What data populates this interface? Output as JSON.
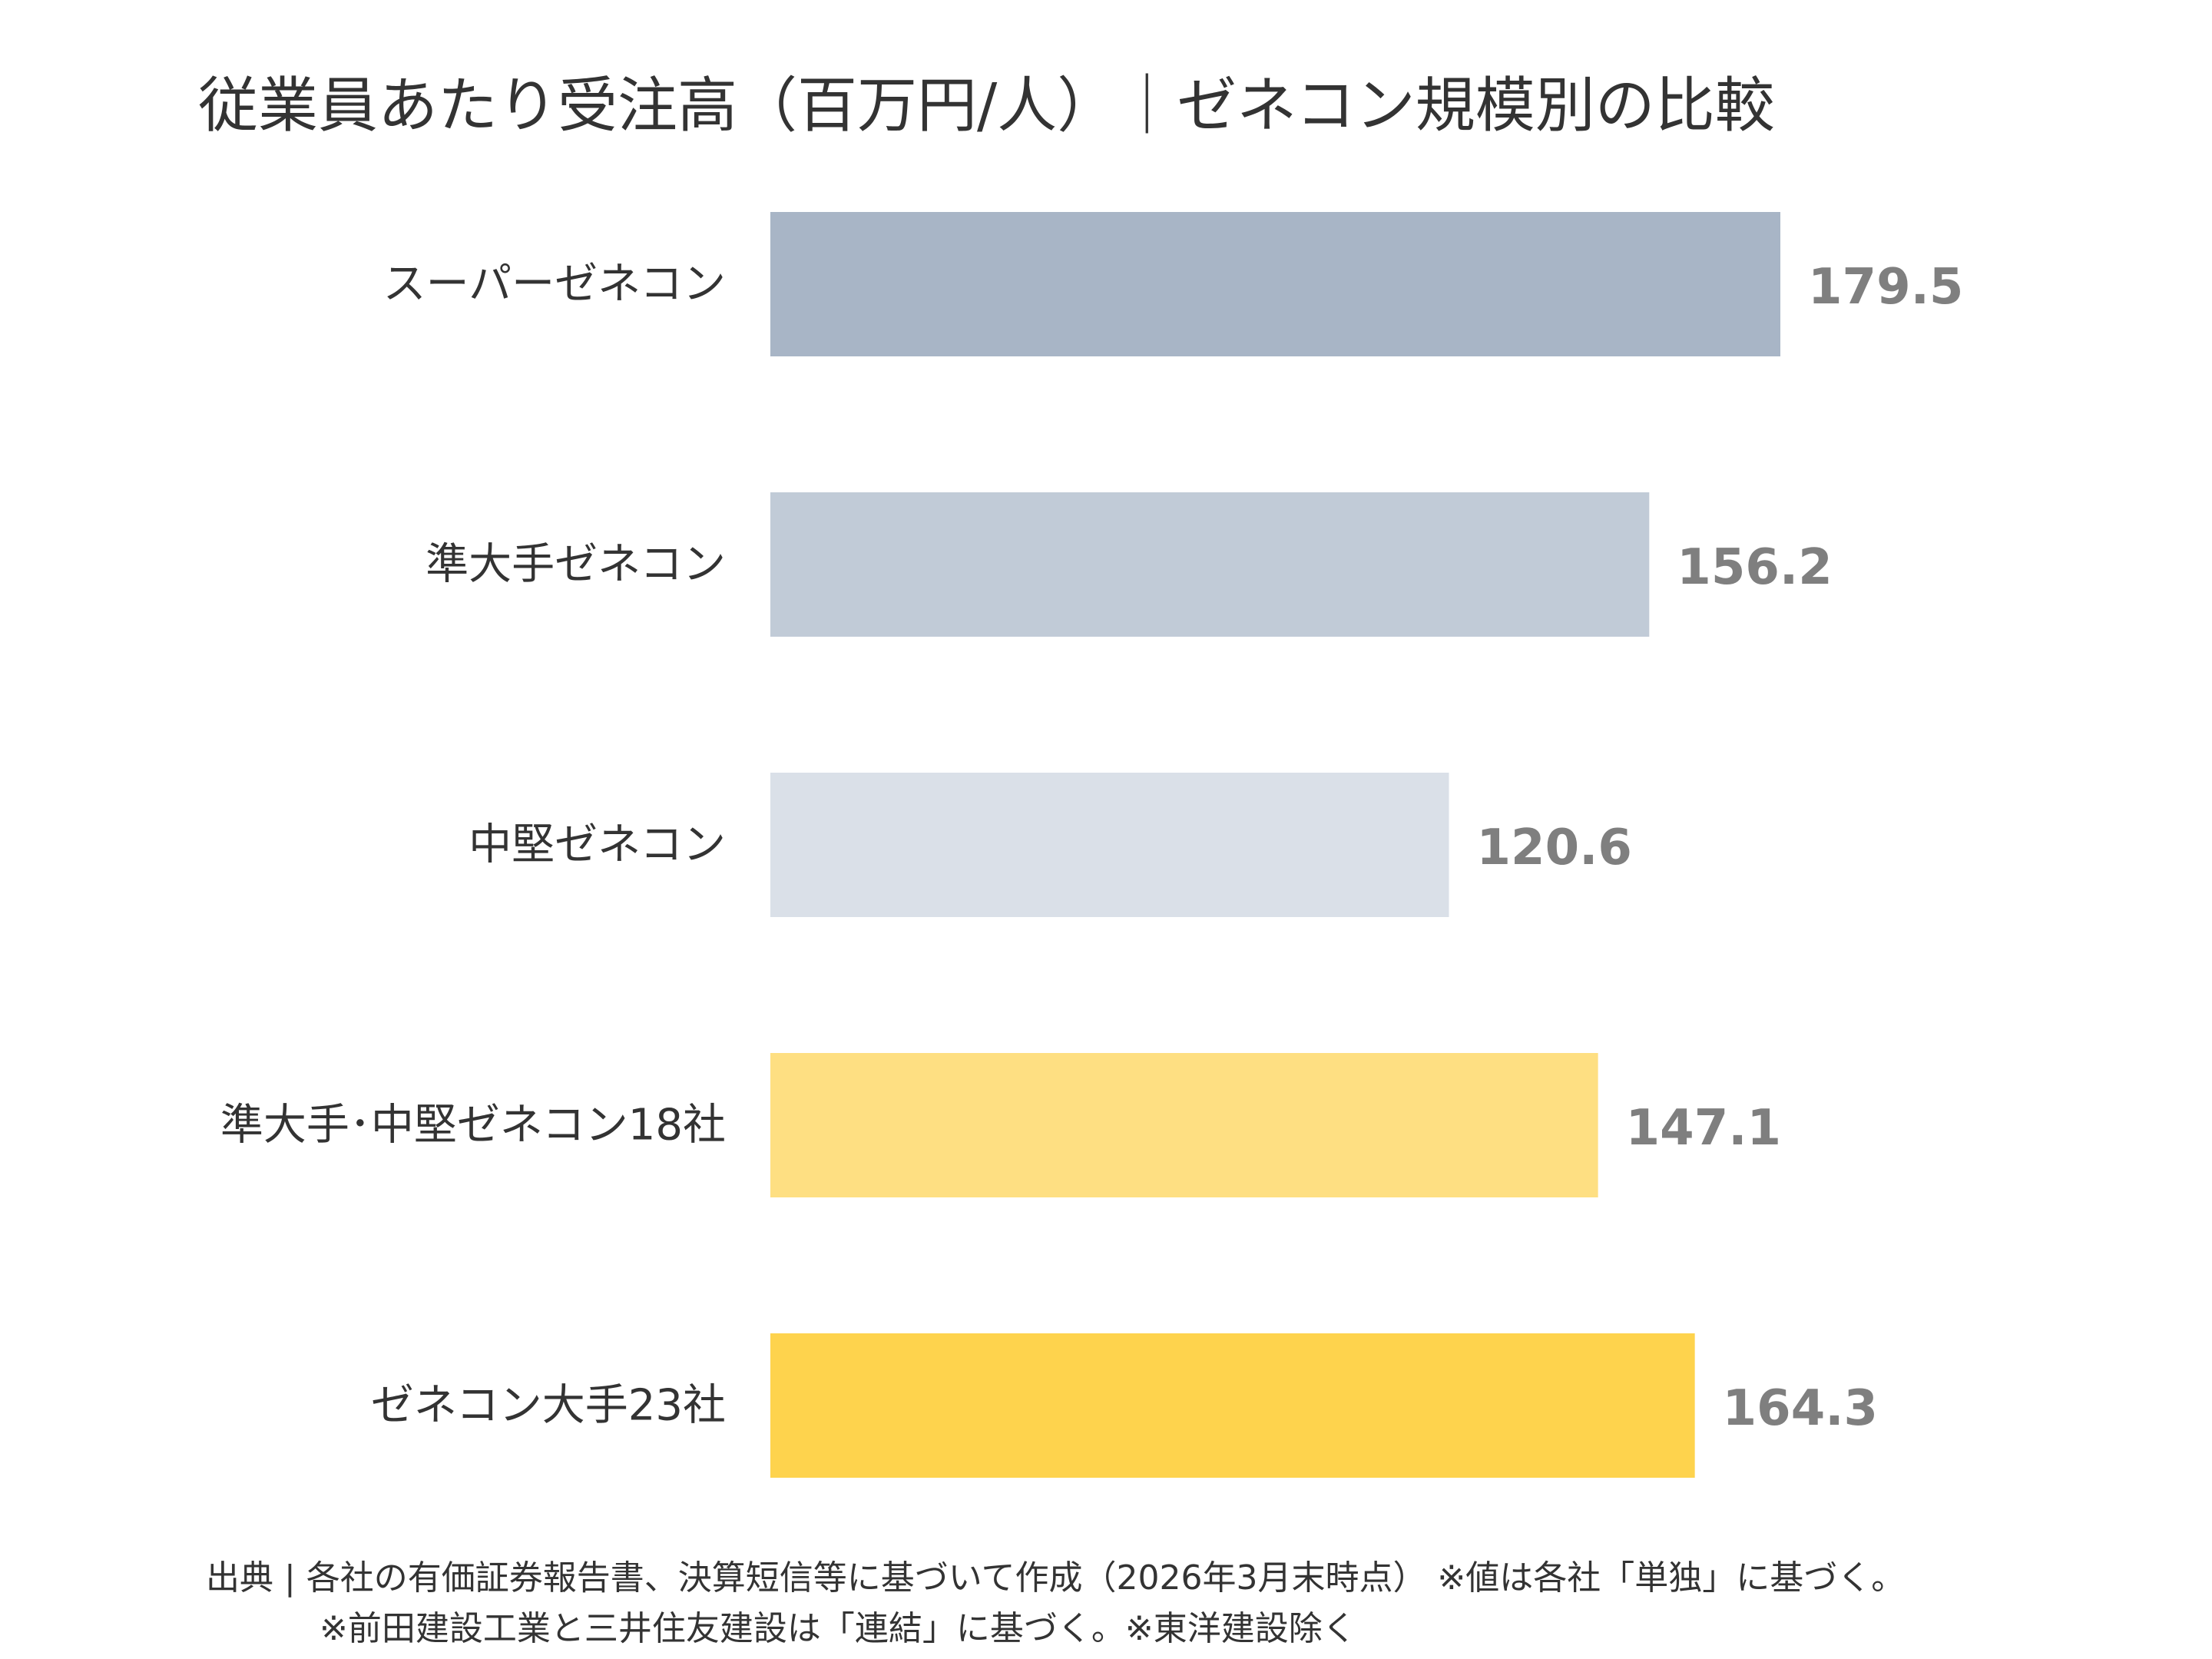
{
  "chart_data": {
    "type": "bar",
    "orientation": "horizontal",
    "title": "従業員あたり受注高（百万円/人）｜ゼネコン規模別の比較",
    "categories": [
      "スーパーゼネコン",
      "準大手ゼネコン",
      "中堅ゼネコン",
      "準大手･中堅ゼネコン18社",
      "ゼネコン大手23社"
    ],
    "values": [
      179.5,
      156.2,
      120.6,
      147.1,
      164.3
    ],
    "value_labels": [
      "179.5",
      "156.2",
      "120.6",
      "147.1",
      "164.3"
    ],
    "colors": [
      "#a8b5c6",
      "#c1cbd7",
      "#dae0e8",
      "#fedf82",
      "#fed34d"
    ],
    "xlim": [
      0,
      179.5
    ],
    "grid": false,
    "legend": "none"
  },
  "footnote": {
    "line1": "出典 | 各社の有価証券報告書、決算短信等に基づいて作成（2026年3月末時点） ※値は各社「単独」に基づく。",
    "line2": "※前田建設工業と三井住友建設は「連結」に基づく。※東洋建設除く"
  }
}
